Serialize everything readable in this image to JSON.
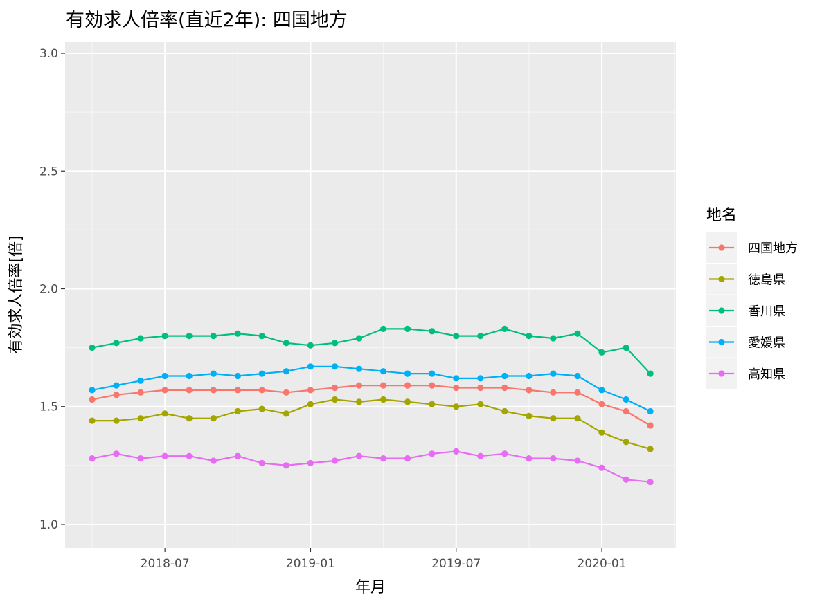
{
  "chart_data": {
    "type": "line",
    "title": "有効求人倍率(直近2年): 四国地方",
    "xlabel": "年月",
    "ylabel": "有効求人倍率[倍]",
    "ylim": [
      0.9,
      3.05
    ],
    "y_ticks": [
      1.0,
      1.5,
      2.0,
      2.5,
      3.0
    ],
    "y_tick_labels": [
      "1.0",
      "1.5",
      "2.0",
      "2.5",
      "3.0"
    ],
    "x": [
      "2018-04",
      "2018-05",
      "2018-06",
      "2018-07",
      "2018-08",
      "2018-09",
      "2018-10",
      "2018-11",
      "2018-12",
      "2019-01",
      "2019-02",
      "2019-03",
      "2019-04",
      "2019-05",
      "2019-06",
      "2019-07",
      "2019-08",
      "2019-09",
      "2019-10",
      "2019-11",
      "2019-12",
      "2020-01",
      "2020-02",
      "2020-03"
    ],
    "x_ticks": [
      "2018-07",
      "2019-01",
      "2019-07",
      "2020-01"
    ],
    "legend_title": "地名",
    "legend_position": "right",
    "grid": true,
    "series": [
      {
        "name": "四国地方",
        "color": "#F8766D",
        "values": [
          1.53,
          1.55,
          1.56,
          1.57,
          1.57,
          1.57,
          1.57,
          1.57,
          1.56,
          1.57,
          1.58,
          1.59,
          1.59,
          1.59,
          1.59,
          1.58,
          1.58,
          1.58,
          1.57,
          1.56,
          1.56,
          1.51,
          1.48,
          1.42
        ]
      },
      {
        "name": "徳島県",
        "color": "#A3A500",
        "values": [
          1.44,
          1.44,
          1.45,
          1.47,
          1.45,
          1.45,
          1.48,
          1.49,
          1.47,
          1.51,
          1.53,
          1.52,
          1.53,
          1.52,
          1.51,
          1.5,
          1.51,
          1.48,
          1.46,
          1.45,
          1.45,
          1.39,
          1.35,
          1.32
        ]
      },
      {
        "name": "香川県",
        "color": "#00BF7D",
        "values": [
          1.75,
          1.77,
          1.79,
          1.8,
          1.8,
          1.8,
          1.81,
          1.8,
          1.77,
          1.76,
          1.77,
          1.79,
          1.83,
          1.83,
          1.82,
          1.8,
          1.8,
          1.83,
          1.8,
          1.79,
          1.81,
          1.73,
          1.75,
          1.64
        ]
      },
      {
        "name": "愛媛県",
        "color": "#00B0F6",
        "values": [
          1.57,
          1.59,
          1.61,
          1.63,
          1.63,
          1.64,
          1.63,
          1.64,
          1.65,
          1.67,
          1.67,
          1.66,
          1.65,
          1.64,
          1.64,
          1.62,
          1.62,
          1.63,
          1.63,
          1.64,
          1.63,
          1.57,
          1.53,
          1.48
        ]
      },
      {
        "name": "高知県",
        "color": "#E76BF3",
        "values": [
          1.28,
          1.3,
          1.28,
          1.29,
          1.29,
          1.27,
          1.29,
          1.26,
          1.25,
          1.26,
          1.27,
          1.29,
          1.28,
          1.28,
          1.3,
          1.31,
          1.29,
          1.3,
          1.28,
          1.28,
          1.27,
          1.24,
          1.19,
          1.18
        ]
      }
    ]
  }
}
